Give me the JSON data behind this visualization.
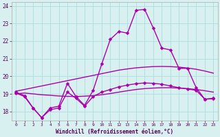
{
  "xlabel": "Windchill (Refroidissement éolien,°C)",
  "background_color": "#d8f0f0",
  "grid_color": "#aadddd",
  "line_color": "#aa00aa",
  "x_ticks": [
    0,
    1,
    2,
    3,
    4,
    5,
    6,
    7,
    8,
    9,
    10,
    11,
    12,
    13,
    14,
    15,
    16,
    17,
    18,
    19,
    20,
    21,
    22,
    23
  ],
  "ylim": [
    17.5,
    24.2
  ],
  "yticks": [
    18,
    19,
    20,
    21,
    22,
    23,
    24
  ],
  "series": [
    {
      "x": [
        0,
        1,
        2,
        3,
        4,
        5,
        6,
        7,
        8,
        9,
        10,
        11,
        12,
        13,
        14,
        15,
        16,
        17,
        18,
        19,
        20,
        21,
        22,
        23
      ],
      "y": [
        19.1,
        18.9,
        18.2,
        17.65,
        18.2,
        18.3,
        19.6,
        18.85,
        18.35,
        19.2,
        20.7,
        22.1,
        22.55,
        22.45,
        23.75,
        23.8,
        22.75,
        21.6,
        21.5,
        20.45,
        20.45,
        19.35,
        18.7,
        18.75
      ],
      "marker": true,
      "markersize": 2.5,
      "linewidth": 1.0
    },
    {
      "x": [
        0,
        1,
        2,
        3,
        4,
        5,
        6,
        7,
        8,
        9,
        10,
        11,
        12,
        13,
        14,
        15,
        16,
        17,
        18,
        19,
        20,
        21,
        22,
        23
      ],
      "y": [
        19.15,
        19.25,
        19.35,
        19.45,
        19.55,
        19.65,
        19.75,
        19.85,
        19.95,
        20.05,
        20.15,
        20.25,
        20.35,
        20.42,
        20.48,
        20.52,
        20.55,
        20.56,
        20.55,
        20.52,
        20.47,
        20.4,
        20.3,
        20.18
      ],
      "marker": false,
      "markersize": 0,
      "linewidth": 1.0
    },
    {
      "x": [
        0,
        1,
        2,
        3,
        4,
        5,
        6,
        7,
        8,
        9,
        10,
        11,
        12,
        13,
        14,
        15,
        16,
        17,
        18,
        19,
        20,
        21,
        22,
        23
      ],
      "y": [
        19.0,
        19.05,
        19.0,
        18.95,
        18.92,
        18.88,
        18.86,
        18.85,
        18.87,
        18.9,
        18.95,
        19.02,
        19.1,
        19.18,
        19.25,
        19.3,
        19.33,
        19.35,
        19.35,
        19.33,
        19.3,
        19.25,
        19.18,
        19.1
      ],
      "marker": false,
      "markersize": 0,
      "linewidth": 1.0
    },
    {
      "x": [
        0,
        1,
        2,
        3,
        4,
        5,
        6,
        7,
        8,
        9,
        10,
        11,
        12,
        13,
        14,
        15,
        16,
        17,
        18,
        19,
        20,
        21,
        22,
        23
      ],
      "y": [
        19.05,
        18.85,
        18.2,
        17.65,
        18.1,
        18.2,
        19.1,
        18.75,
        18.3,
        18.85,
        19.1,
        19.25,
        19.4,
        19.5,
        19.58,
        19.62,
        19.6,
        19.55,
        19.45,
        19.35,
        19.28,
        19.2,
        18.7,
        18.72
      ],
      "marker": true,
      "markersize": 2.5,
      "linewidth": 1.0
    }
  ]
}
